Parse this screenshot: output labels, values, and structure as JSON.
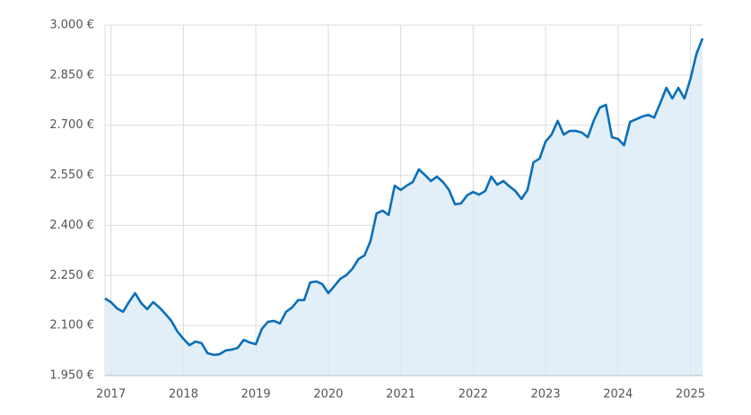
{
  "chart_data": {
    "type": "area",
    "x": [
      2016.917,
      2017,
      2017.083,
      2017.167,
      2017.25,
      2017.333,
      2017.417,
      2017.5,
      2017.583,
      2017.667,
      2017.75,
      2017.833,
      2017.917,
      2018,
      2018.083,
      2018.167,
      2018.25,
      2018.333,
      2018.417,
      2018.5,
      2018.583,
      2018.667,
      2018.75,
      2018.833,
      2018.917,
      2019,
      2019.083,
      2019.167,
      2019.25,
      2019.333,
      2019.417,
      2019.5,
      2019.583,
      2019.667,
      2019.75,
      2019.833,
      2019.917,
      2020,
      2020.083,
      2020.167,
      2020.25,
      2020.333,
      2020.417,
      2020.5,
      2020.583,
      2020.667,
      2020.75,
      2020.833,
      2020.917,
      2021,
      2021.083,
      2021.167,
      2021.25,
      2021.333,
      2021.417,
      2021.5,
      2021.583,
      2021.667,
      2021.75,
      2021.833,
      2021.917,
      2022,
      2022.083,
      2022.167,
      2022.25,
      2022.333,
      2022.417,
      2022.5,
      2022.583,
      2022.667,
      2022.75,
      2022.833,
      2022.917,
      2023,
      2023.083,
      2023.167,
      2023.25,
      2023.333,
      2023.417,
      2023.5,
      2023.583,
      2023.667,
      2023.75,
      2023.833,
      2023.917,
      2024,
      2024.083,
      2024.167,
      2024.25,
      2024.333,
      2024.417,
      2024.5,
      2024.583,
      2024.667,
      2024.75,
      2024.833,
      2024.917,
      2025,
      2025.083,
      2025.167
    ],
    "series": [
      {
        "color": "#0b6fb8",
        "fill": "#e2eff9",
        "values": [
          2181,
          2170,
          2151,
          2141,
          2171,
          2197,
          2167,
          2149,
          2170,
          2154,
          2135,
          2114,
          2082,
          2060,
          2041,
          2052,
          2047,
          2017,
          2012,
          2014,
          2025,
          2028,
          2033,
          2057,
          2049,
          2044,
          2090,
          2111,
          2114,
          2106,
          2141,
          2154,
          2176,
          2176,
          2229,
          2232,
          2224,
          2197,
          2218,
          2240,
          2251,
          2270,
          2299,
          2310,
          2353,
          2436,
          2444,
          2431,
          2519,
          2506,
          2519,
          2530,
          2568,
          2551,
          2533,
          2546,
          2530,
          2506,
          2463,
          2466,
          2490,
          2500,
          2492,
          2503,
          2546,
          2522,
          2533,
          2517,
          2503,
          2479,
          2506,
          2589,
          2600,
          2651,
          2672,
          2713,
          2672,
          2683,
          2683,
          2678,
          2664,
          2715,
          2753,
          2761,
          2664,
          2659,
          2640,
          2710,
          2718,
          2726,
          2731,
          2723,
          2766,
          2812,
          2780,
          2812,
          2780,
          2839,
          2914,
          2960
        ]
      }
    ],
    "xlim": [
      2016.917,
      2025.167
    ],
    "xticks": [
      2017,
      2018,
      2019,
      2020,
      2021,
      2022,
      2023,
      2024,
      2025
    ],
    "ylim": [
      1950,
      3000
    ],
    "yticks": [
      {
        "value": 1950,
        "label": "1.950 €"
      },
      {
        "value": 2100,
        "label": "2.100 €"
      },
      {
        "value": 2250,
        "label": "2.250 €"
      },
      {
        "value": 2400,
        "label": "2.400 €"
      },
      {
        "value": 2550,
        "label": "2.550 €"
      },
      {
        "value": 2700,
        "label": "2.700 €"
      },
      {
        "value": 2850,
        "label": "2.850 €"
      },
      {
        "value": 3000,
        "label": "3.000 €"
      }
    ],
    "grid": true
  }
}
